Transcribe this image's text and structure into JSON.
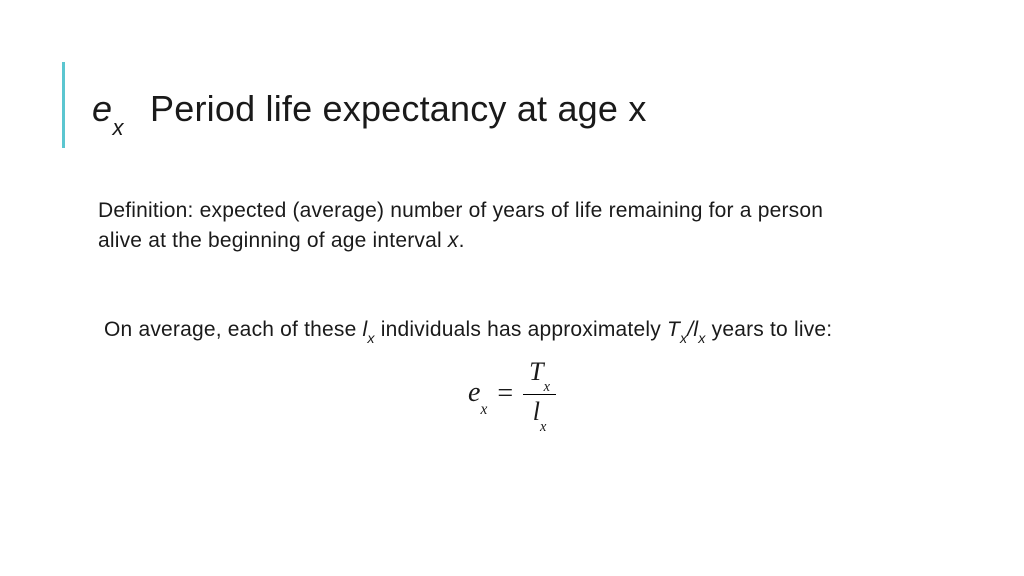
{
  "accent_color": "#5bc6d0",
  "title": {
    "symbol_base": "e",
    "symbol_sub": "x",
    "text": "Period life expectancy at age x"
  },
  "para1_a": "Definition: expected (average) number of years of life remaining for a person",
  "para1_b": "alive at the beginning of age interval ",
  "para1_ital": "x",
  "para1_c": ".",
  "para2_a": "On average, each of these ",
  "para2_b": " individuals has approximately ",
  "para2_c": " years to live:",
  "sym": {
    "l": "l",
    "T": "T",
    "e": "e",
    "x": "x",
    "slash": "/",
    "eq": "="
  }
}
